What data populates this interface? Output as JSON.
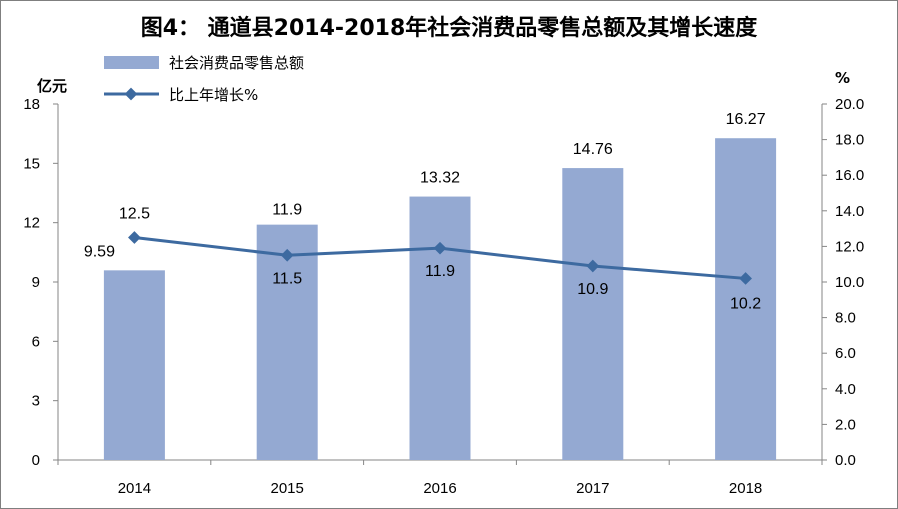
{
  "chart_data": {
    "type": "bar",
    "title": "图4： 通道县2014-2018年社会消费品零售总额及其增长速度",
    "categories": [
      "2014",
      "2015",
      "2016",
      "2017",
      "2018"
    ],
    "y_left": {
      "unit": "亿元",
      "ylim": [
        0,
        18
      ],
      "ticks": [
        "0",
        "3",
        "6",
        "9",
        "12",
        "15",
        "18"
      ]
    },
    "y_right": {
      "unit": "%",
      "ylim": [
        0,
        20
      ],
      "ticks": [
        "0.0",
        "2.0",
        "4.0",
        "6.0",
        "8.0",
        "10.0",
        "12.0",
        "14.0",
        "16.0",
        "18.0",
        "20.0"
      ]
    },
    "series": [
      {
        "name": "社会消费品零售总额",
        "type": "bar",
        "axis": "left",
        "color": "#94a9d2",
        "values": [
          9.59,
          11.9,
          13.32,
          14.76,
          16.27
        ],
        "labels": [
          "9.59",
          "11.9",
          "13.32",
          "14.76",
          "16.27"
        ]
      },
      {
        "name": "比上年增长%",
        "type": "line",
        "axis": "right",
        "color": "#3d6aa0",
        "values": [
          12.5,
          11.5,
          11.9,
          10.9,
          10.2
        ],
        "labels": [
          "12.5",
          "11.5",
          "11.9",
          "10.9",
          "10.2"
        ]
      }
    ],
    "legend": "top-left",
    "grid": false
  }
}
